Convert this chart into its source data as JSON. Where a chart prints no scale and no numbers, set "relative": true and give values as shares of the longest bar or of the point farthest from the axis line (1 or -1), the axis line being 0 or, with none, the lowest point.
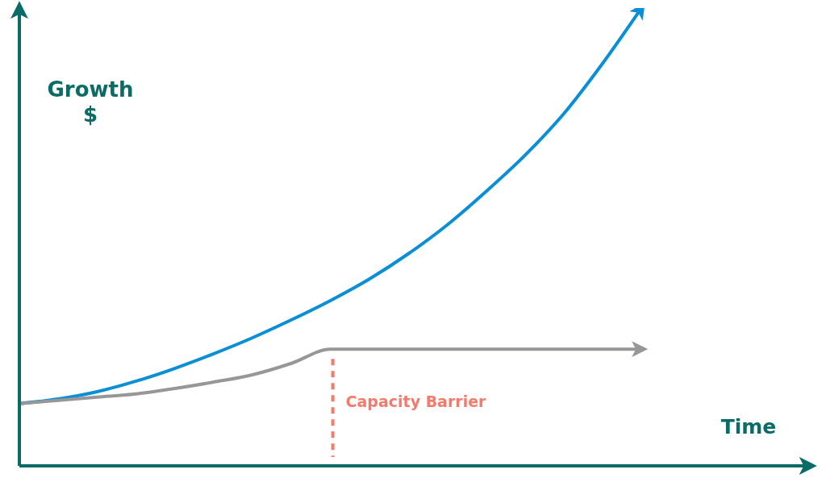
{
  "chart_data": {
    "type": "line",
    "xlabel": "Time",
    "ylabel": "Growth\n$",
    "relative": true,
    "tick_labels": false,
    "categories": [
      null,
      null,
      null,
      null,
      null,
      null,
      null,
      null,
      null,
      null,
      null,
      null,
      null,
      null,
      null,
      null,
      null,
      null,
      null,
      null,
      null
    ],
    "series": [
      {
        "color": "#0a8fd6",
        "values": [
          0.136,
          0.146,
          0.162,
          0.185,
          0.213,
          0.245,
          0.28,
          0.319,
          0.361,
          0.408,
          0.463,
          0.526,
          0.599,
          0.678,
          0.769,
          0.879,
          1,
          null,
          null,
          null,
          null
        ]
      },
      {
        "color": "#97979a",
        "values": [
          0.136,
          0.143,
          0.15,
          0.157,
          0.169,
          0.183,
          0.199,
          0.224,
          0.255,
          0.255,
          0.255,
          0.255,
          0.255,
          0.255,
          0.255,
          0.255,
          0.255,
          null,
          null,
          null,
          null
        ]
      }
    ],
    "annotations": [
      "Capacity Barrier"
    ]
  }
}
